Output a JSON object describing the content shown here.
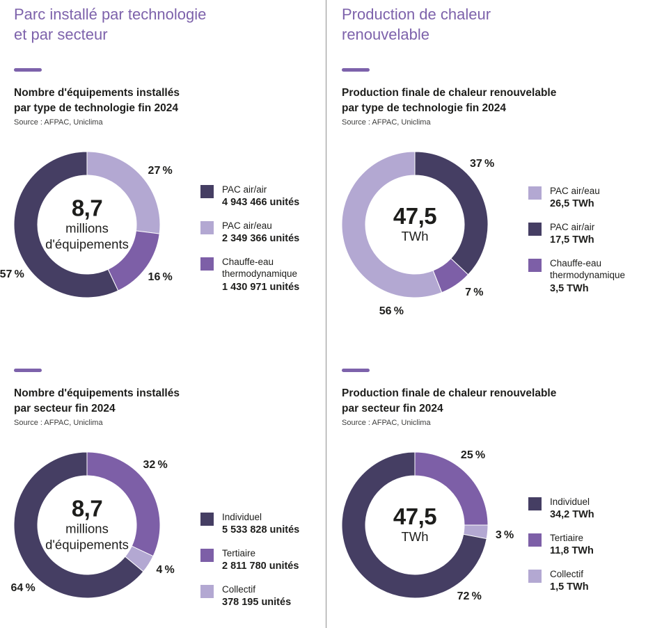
{
  "columns": {
    "left": {
      "title_lines": [
        "Parc installé par technologie",
        "et par secteur"
      ]
    },
    "right": {
      "title_lines": [
        "Production de chaleur",
        "renouvelable"
      ]
    }
  },
  "colors": {
    "dark": "#453e63",
    "medium": "#7d5fa7",
    "light": "#b3a8d2",
    "heading": "#7d62ab",
    "dash": "#7d62ab",
    "divider": "#8f8f8f",
    "text": "#1d1d1b"
  },
  "chart_data": [
    {
      "type": "pie",
      "donut": true,
      "title": "Nombre d'équipements installés par type de technologie fin 2024",
      "title_lines": [
        "Nombre d'équipements installés",
        "par type de technologie fin 2024"
      ],
      "source": "Source : AFPAC, Uniclima",
      "center": {
        "value": "8,7",
        "sub": [
          "millions",
          "d'équipements"
        ]
      },
      "start_angle_deg": 0,
      "direction": "clockwise",
      "segments": [
        {
          "label": "PAC air/eau",
          "pct": 27,
          "pct_label": "27 %",
          "color": "light",
          "label_angle": 54
        },
        {
          "label": "Chauffe-eau thermodynamique",
          "pct": 16,
          "pct_label": "16 %",
          "color": "medium",
          "label_angle": 126
        },
        {
          "label": "PAC air/air",
          "pct": 57,
          "pct_label": "57 %",
          "color": "dark",
          "label_angle": 236
        }
      ],
      "legend": [
        {
          "label": "PAC air/air",
          "value": "4 943 466 unités",
          "color": "dark"
        },
        {
          "label": "PAC air/eau",
          "value": "2 349 366 unités",
          "color": "light"
        },
        {
          "label": "Chauffe-eau thermodynamique",
          "value": "1 430 971 unités",
          "color": "medium"
        }
      ]
    },
    {
      "type": "pie",
      "donut": true,
      "title": "Production finale de chaleur renouvelable par type de technologie fin 2024",
      "title_lines": [
        "Production finale de chaleur renouvelable",
        "par type de technologie fin 2024"
      ],
      "source": "Source : AFPAC, Uniclima",
      "center": {
        "value": "47,5",
        "sub": [
          "TWh"
        ]
      },
      "start_angle_deg": 0,
      "direction": "clockwise",
      "segments": [
        {
          "label": "PAC air/air",
          "pct": 37,
          "pct_label": "37 %",
          "color": "dark",
          "label_angle": 48
        },
        {
          "label": "Chauffe-eau thermodynamique",
          "pct": 7,
          "pct_label": "7 %",
          "color": "medium",
          "label_angle": 139
        },
        {
          "label": "PAC air/eau",
          "pct": 56,
          "pct_label": "56 %",
          "color": "light",
          "label_angle": 195
        }
      ],
      "legend": [
        {
          "label": "PAC air/eau",
          "value": "26,5 TWh",
          "color": "light"
        },
        {
          "label": "PAC air/air",
          "value": "17,5 TWh",
          "color": "dark"
        },
        {
          "label": "Chauffe-eau thermodynamique",
          "value": "3,5 TWh",
          "color": "medium"
        }
      ]
    },
    {
      "type": "pie",
      "donut": true,
      "title": "Nombre d'équipements installés par secteur fin 2024",
      "title_lines": [
        "Nombre d'équipements installés",
        "par secteur fin 2024"
      ],
      "source": "Source : AFPAC, Uniclima",
      "center": {
        "value": "8,7",
        "sub": [
          "millions",
          "d'équipements"
        ]
      },
      "start_angle_deg": 0,
      "direction": "clockwise",
      "segments": [
        {
          "label": "Tertiaire",
          "pct": 32,
          "pct_label": "32 %",
          "color": "medium",
          "label_angle": 49
        },
        {
          "label": "Collectif",
          "pct": 4,
          "pct_label": "4 %",
          "color": "light",
          "label_angle": 120
        },
        {
          "label": "Individuel",
          "pct": 64,
          "pct_label": "64 %",
          "color": "dark",
          "label_angle": 225
        }
      ],
      "legend": [
        {
          "label": "Individuel",
          "value": "5 533 828 unités",
          "color": "dark"
        },
        {
          "label": "Tertiaire",
          "value": "2 811 780 unités",
          "color": "medium"
        },
        {
          "label": "Collectif",
          "value": "378 195 unités",
          "color": "light"
        }
      ]
    },
    {
      "type": "pie",
      "donut": true,
      "title": "Production finale de chaleur renouvelable par secteur fin 2024",
      "title_lines": [
        "Production finale de chaleur renouvelable",
        "par secteur fin 2024"
      ],
      "source": "Source : AFPAC, Uniclima",
      "center": {
        "value": "47,5",
        "sub": [
          "TWh"
        ]
      },
      "start_angle_deg": 0,
      "direction": "clockwise",
      "segments": [
        {
          "label": "Tertiaire",
          "pct": 25,
          "pct_label": "25 %",
          "color": "medium",
          "label_angle": 40
        },
        {
          "label": "Collectif",
          "pct": 3,
          "pct_label": "3 %",
          "color": "light",
          "label_angle": 97
        },
        {
          "label": "Individuel",
          "pct": 72,
          "pct_label": "72 %",
          "color": "dark",
          "label_angle": 143
        }
      ],
      "legend": [
        {
          "label": "Individuel",
          "value": "34,2 TWh",
          "color": "dark"
        },
        {
          "label": "Tertiaire",
          "value": "11,8 TWh",
          "color": "medium"
        },
        {
          "label": "Collectif",
          "value": "1,5 TWh",
          "color": "light"
        }
      ]
    }
  ]
}
